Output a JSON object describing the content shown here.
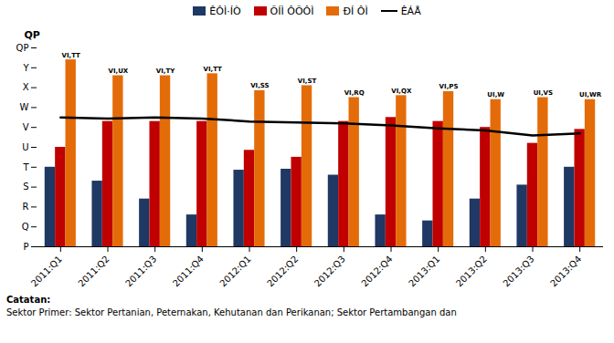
{
  "chart_data": {
    "type": "bar",
    "categories": [
      "2011:Q1",
      "2011:Q2",
      "2011:Q3",
      "2011:Q4",
      "2012:Q1",
      "2012:Q2",
      "2012:Q3",
      "2012:Q4",
      "2013:Q1",
      "2013:Q2",
      "2013:Q3",
      "2013:Q4"
    ],
    "series": [
      {
        "name": "ÊÔÌ·ÍÒ",
        "color": "#1f3864",
        "values": [
          4.0,
          3.3,
          2.4,
          1.6,
          3.85,
          3.9,
          3.6,
          1.6,
          1.3,
          2.4,
          3.1,
          4.0
        ]
      },
      {
        "name": "ÕÍÌ ÔÕÔÌ",
        "color": "#c00000",
        "values": [
          5.0,
          6.3,
          6.3,
          6.3,
          4.85,
          4.5,
          6.3,
          6.5,
          6.3,
          6.0,
          5.2,
          5.9
        ]
      },
      {
        "name": "ÐÍ ÔÌ",
        "color": "#e36c09",
        "values": [
          9.4,
          8.6,
          8.6,
          8.7,
          7.85,
          8.1,
          7.5,
          7.6,
          7.8,
          7.4,
          7.5,
          7.4
        ],
        "annotations": [
          "VI,TT",
          "VI,UX",
          "VI,TY",
          "VI,TT",
          "VI,SS",
          "VI,ST",
          "VI,RQ",
          "VI,QX",
          "VI,PS",
          "UI,W",
          "UI,VS",
          "UI,WR"
        ]
      },
      {
        "name": "ÊÁÅ",
        "type": "line",
        "color": "#000000",
        "values": [
          6.5,
          6.45,
          6.5,
          6.45,
          6.3,
          6.25,
          6.2,
          6.1,
          5.95,
          5.85,
          5.6,
          5.7
        ]
      }
    ],
    "ylabel": "QP",
    "ylim": [
      0,
      10
    ],
    "yticks": [
      {
        "value": 0,
        "label": "P"
      },
      {
        "value": 1,
        "label": "Q"
      },
      {
        "value": 2,
        "label": "R"
      },
      {
        "value": 3,
        "label": "S"
      },
      {
        "value": 4,
        "label": "T"
      },
      {
        "value": 5,
        "label": "U"
      },
      {
        "value": 6,
        "label": "V"
      },
      {
        "value": 7,
        "label": "W"
      },
      {
        "value": 8,
        "label": "X"
      },
      {
        "value": 9,
        "label": "Y"
      },
      {
        "value": 10,
        "label": "QP"
      }
    ],
    "grid": false,
    "legend": "top",
    "notes": [
      "Catatan:",
      "Sektor Primer: Sektor Pertanian, Peternakan, Kehutanan dan Perikanan; Sektor Pertambangan dan"
    ]
  }
}
